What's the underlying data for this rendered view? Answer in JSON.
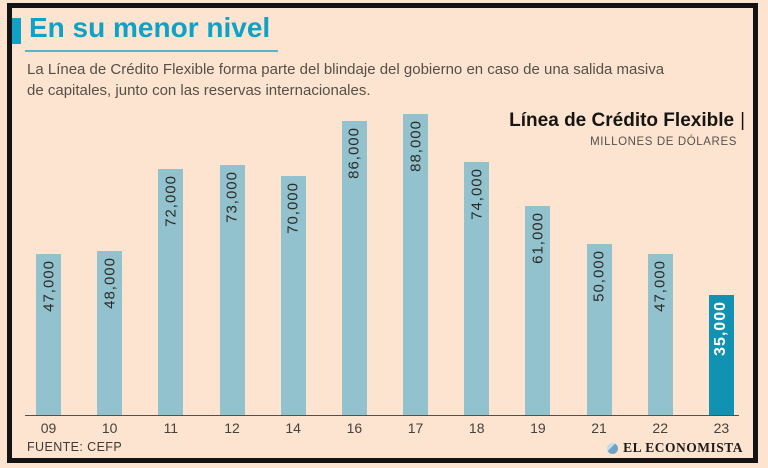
{
  "page": {
    "background_color": "#fce4d0",
    "frame_color": "#131313",
    "accent_color": "#0da2c6"
  },
  "header": {
    "title": "En su menor nivel",
    "description_line1": "La Línea de Crédito Flexible forma parte del blindaje del gobierno en caso de una salida masiva",
    "description_line2": "de capitales, junto con las reservas internacionales."
  },
  "chart_header": {
    "title": "Línea de Crédito Flexible",
    "separator": "|",
    "subtitle": "MILLONES DE DÓLARES"
  },
  "chart_data": {
    "type": "bar",
    "title": "Línea de Crédito Flexible",
    "units_label": "MILLONES DE DÓLARES",
    "categories": [
      "09",
      "10",
      "11",
      "12",
      "14",
      "16",
      "17",
      "18",
      "19",
      "21",
      "22",
      "23"
    ],
    "values": [
      47000,
      48000,
      72000,
      73000,
      70000,
      86000,
      88000,
      74000,
      61000,
      50000,
      47000,
      35000
    ],
    "value_labels": [
      "47,000",
      "48,000",
      "72,000",
      "73,000",
      "70,000",
      "86,000",
      "88,000",
      "74,000",
      "61,000",
      "50,000",
      "47,000",
      "35,000"
    ],
    "ylim": [
      0,
      88000
    ],
    "grid": false,
    "legend": "none",
    "bar_color": "#92c2cd",
    "highlight_index": 11,
    "highlight_color": "#1292b3",
    "label_color": "#2d2a26",
    "highlight_label_color": "#ffffff"
  },
  "footer": {
    "source": "FUENTE: CEFP",
    "brand": "EL ECONOMISTA",
    "logo_icon": "globe-circle-icon"
  }
}
